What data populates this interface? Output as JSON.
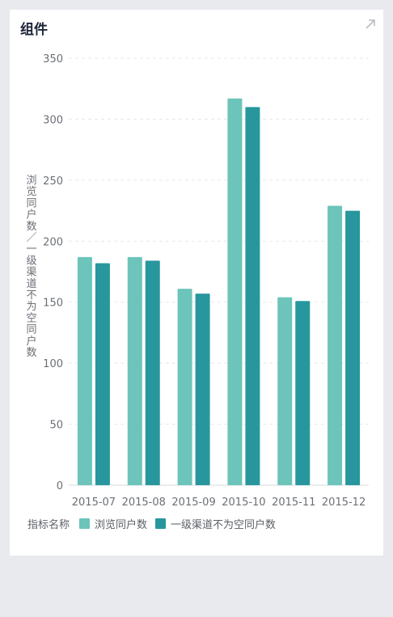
{
  "card": {
    "title": "组件"
  },
  "icons": {
    "expand": "expand-arrow-icon"
  },
  "colors": {
    "series1": "#6cc4ba",
    "series2": "#27979d",
    "grid": "#e6e8ec",
    "axis_text": "#6b6f76"
  },
  "legend": {
    "title": "指标名称"
  },
  "chart_data": {
    "type": "bar",
    "categories": [
      "2015-07",
      "2015-08",
      "2015-09",
      "2015-10",
      "2015-11",
      "2015-12"
    ],
    "series": [
      {
        "name": "浏览同户数",
        "values": [
          187,
          187,
          161,
          317,
          154,
          229
        ]
      },
      {
        "name": "一级渠道不为空同户数",
        "values": [
          182,
          184,
          157,
          310,
          151,
          225
        ]
      }
    ],
    "ylabel": "浏览同户数／一级渠道不为空同户数",
    "ylim": [
      0,
      350
    ],
    "yticks": [
      0,
      50,
      100,
      150,
      200,
      250,
      300,
      350
    ],
    "grid": true,
    "legend_position": "bottom-left"
  }
}
